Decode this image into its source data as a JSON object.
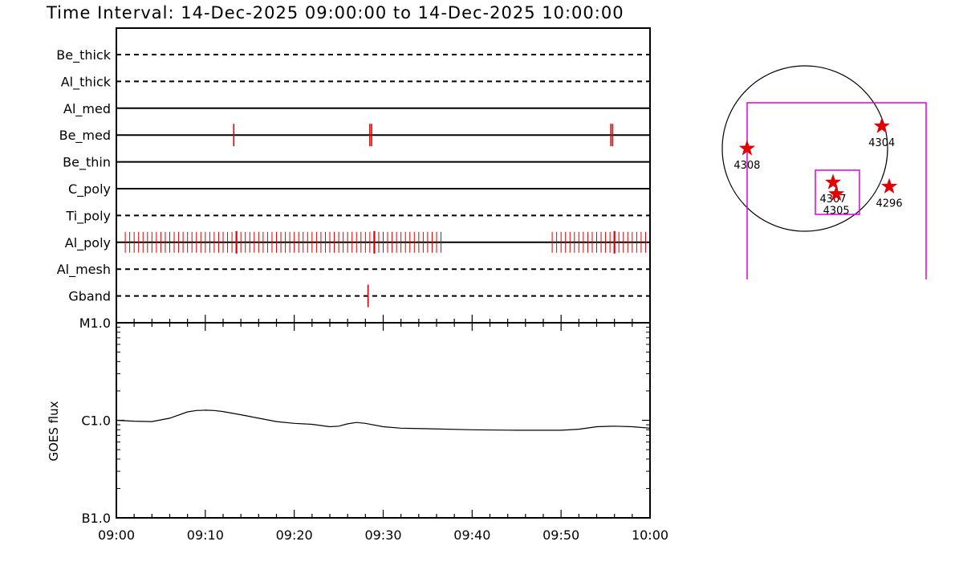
{
  "title": "Time Interval: 14-Dec-2025 09:00:00 to 14-Dec-2025 10:00:00",
  "colors": {
    "marker": "#e00000",
    "fov": "#dd00dd",
    "axis": "#000000"
  },
  "chart_data": [
    {
      "type": "timeline",
      "x_unit": "minutes after 09:00",
      "xlim": [
        0,
        60
      ],
      "filters": [
        {
          "name": "Be_thick",
          "style": "dashed",
          "events": []
        },
        {
          "name": "Al_thick",
          "style": "dashed",
          "events": []
        },
        {
          "name": "Al_med",
          "style": "solid",
          "events": []
        },
        {
          "name": "Be_med",
          "style": "solid",
          "events": [
            13.2,
            28.5,
            28.7,
            55.6,
            55.8
          ]
        },
        {
          "name": "Be_thin",
          "style": "solid",
          "events": []
        },
        {
          "name": "C_poly",
          "style": "solid",
          "events": []
        },
        {
          "name": "Ti_poly",
          "style": "dashed",
          "events": []
        },
        {
          "name": "Al_poly",
          "style": "solid",
          "cadence": [
            {
              "start": 1.0,
              "end": 36.5,
              "step": 0.5
            },
            {
              "start": 49.0,
              "end": 59.5,
              "step": 0.5
            }
          ],
          "highlight_events": [
            13.5,
            29.0,
            56.0
          ]
        },
        {
          "name": "Al_mesh",
          "style": "dashed",
          "events": []
        },
        {
          "name": "Gband",
          "style": "dashed",
          "events": [
            28.3
          ]
        }
      ]
    },
    {
      "type": "line",
      "ylabel": "GOES flux",
      "y_scale": "log",
      "y_ticks": [
        "B1.0",
        "C1.0",
        "M1.0"
      ],
      "ylim": [
        1e-07,
        1e-05
      ],
      "xlim": [
        0,
        60
      ],
      "x_ticks": [
        "09:00",
        "09:10",
        "09:20",
        "09:30",
        "09:40",
        "09:50",
        "10:00"
      ],
      "x": [
        0,
        2,
        4,
        6,
        8,
        9,
        10,
        11,
        12,
        14,
        16,
        18,
        20,
        22,
        24,
        25,
        26,
        27,
        28,
        30,
        32,
        35,
        40,
        45,
        50,
        52,
        54,
        56,
        58,
        60
      ],
      "y": [
        1e-06,
        9.8e-07,
        9.7e-07,
        1.05e-06,
        1.22e-06,
        1.26e-06,
        1.27e-06,
        1.26e-06,
        1.23e-06,
        1.14e-06,
        1.05e-06,
        9.7e-07,
        9.3e-07,
        9.1e-07,
        8.6e-07,
        8.7e-07,
        9.2e-07,
        9.5e-07,
        9.3e-07,
        8.6e-07,
        8.3e-07,
        8.2e-07,
        8e-07,
        7.9e-07,
        7.9e-07,
        8.1e-07,
        8.6e-07,
        8.7e-07,
        8.6e-07,
        8.3e-07
      ]
    },
    {
      "type": "scatter",
      "name": "active-region-map",
      "regions": [
        {
          "label": "4304",
          "x": 0.93,
          "y": 0.27
        },
        {
          "label": "4308",
          "x": -0.7,
          "y": 0.0
        },
        {
          "label": "4307",
          "x": 0.34,
          "y": -0.41
        },
        {
          "label": "4305",
          "x": 0.38,
          "y": -0.55
        },
        {
          "label": "4296",
          "x": 1.02,
          "y": -0.46
        }
      ]
    }
  ]
}
